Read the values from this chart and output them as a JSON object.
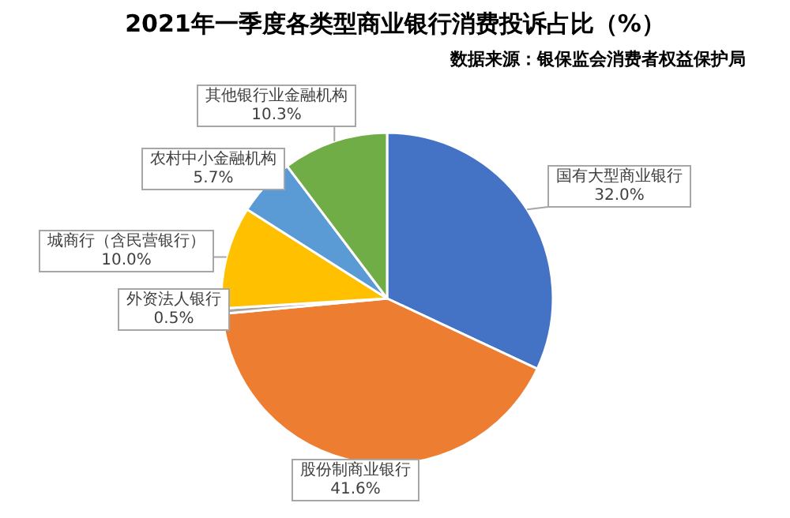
{
  "chart_data": {
    "type": "pie",
    "title": "2021年一季度各类型商业银行消费投诉占比（%）",
    "annotations": [
      "数据来源：银保监会消费者权益保护局"
    ],
    "categories": [
      "国有大型商业银行",
      "股份制商业银行",
      "外资法人银行",
      "城商行（含民营银行）",
      "农村中小金融机构",
      "其他银行业金融机构"
    ],
    "values": [
      32.0,
      41.6,
      0.5,
      10.0,
      5.7,
      10.3
    ],
    "value_labels": [
      "32.0%",
      "41.6%",
      "0.5%",
      "10.0%",
      "5.7%",
      "10.3%"
    ],
    "colors": [
      "#4472c4",
      "#ed7d31",
      "#a5a5a5",
      "#ffc000",
      "#5b9bd5",
      "#70ad47"
    ],
    "legend": false
  }
}
